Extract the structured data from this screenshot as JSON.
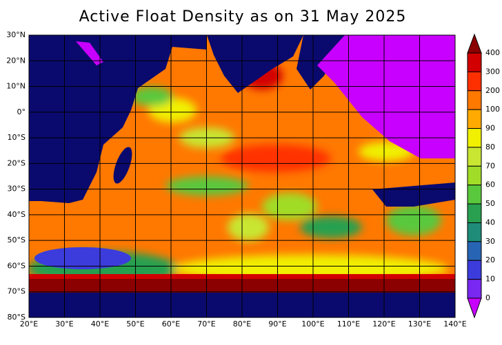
{
  "title": "Active Float Density as on 31 May 2025",
  "map": {
    "lat_labels": [
      "30°N",
      "20°N",
      "10°N",
      "0°",
      "10°S",
      "20°S",
      "30°S",
      "40°S",
      "50°S",
      "60°S",
      "70°S",
      "80°S"
    ],
    "lon_labels": [
      "20°E",
      "30°E",
      "40°E",
      "50°E",
      "60°E",
      "70°E",
      "80°E",
      "90°E",
      "100°E",
      "110°E",
      "120°E",
      "130°E",
      "140°E"
    ]
  },
  "colorbar": {
    "labels": [
      400,
      300,
      200,
      100,
      90,
      80,
      70,
      60,
      50,
      40,
      30,
      20,
      10,
      0
    ],
    "colors": [
      "#8b0000",
      "#d20000",
      "#ff3000",
      "#ff7800",
      "#ffaa00",
      "#f0f000",
      "#c8e632",
      "#a0dc28",
      "#5ac83c",
      "#28a050",
      "#1e8c78",
      "#2864b4",
      "#3c3cdc",
      "#7828f0",
      "#c800ff"
    ]
  }
}
